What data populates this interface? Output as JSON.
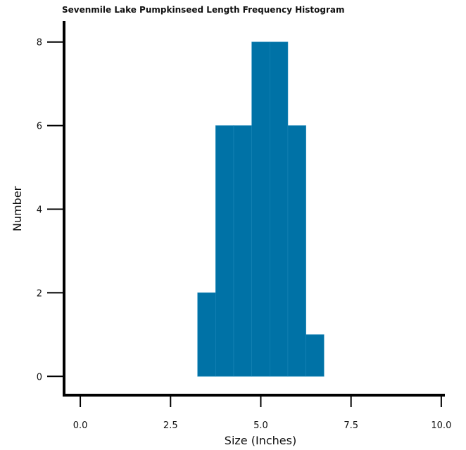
{
  "chart_data": {
    "type": "bar",
    "title": "Sevenmile Lake Pumpkinseed Length Frequency Histogram",
    "xlabel": "Size (Inches)",
    "ylabel": "Number",
    "bin_width": 0.5,
    "bins": [
      {
        "x_start": 3.25,
        "x_end": 3.75,
        "value": 2
      },
      {
        "x_start": 3.75,
        "x_end": 4.25,
        "value": 6
      },
      {
        "x_start": 4.25,
        "x_end": 4.75,
        "value": 6
      },
      {
        "x_start": 4.75,
        "x_end": 5.25,
        "value": 8
      },
      {
        "x_start": 5.25,
        "x_end": 5.75,
        "value": 8
      },
      {
        "x_start": 5.75,
        "x_end": 6.25,
        "value": 6
      },
      {
        "x_start": 6.25,
        "x_end": 6.75,
        "value": 1
      }
    ],
    "xlim": [
      -0.45,
      10.1
    ],
    "ylim": [
      -0.45,
      8.5
    ],
    "x_ticks": [
      0.0,
      2.5,
      5.0,
      7.5,
      10.0
    ],
    "x_tick_labels": [
      "0.0",
      "2.5",
      "5.0",
      "7.5",
      "10.0"
    ],
    "y_ticks": [
      0,
      2,
      4,
      6,
      8
    ],
    "y_tick_labels": [
      "0",
      "2",
      "4",
      "6",
      "8"
    ],
    "bar_color": "#0072a6",
    "grid": false,
    "legend": "none"
  }
}
